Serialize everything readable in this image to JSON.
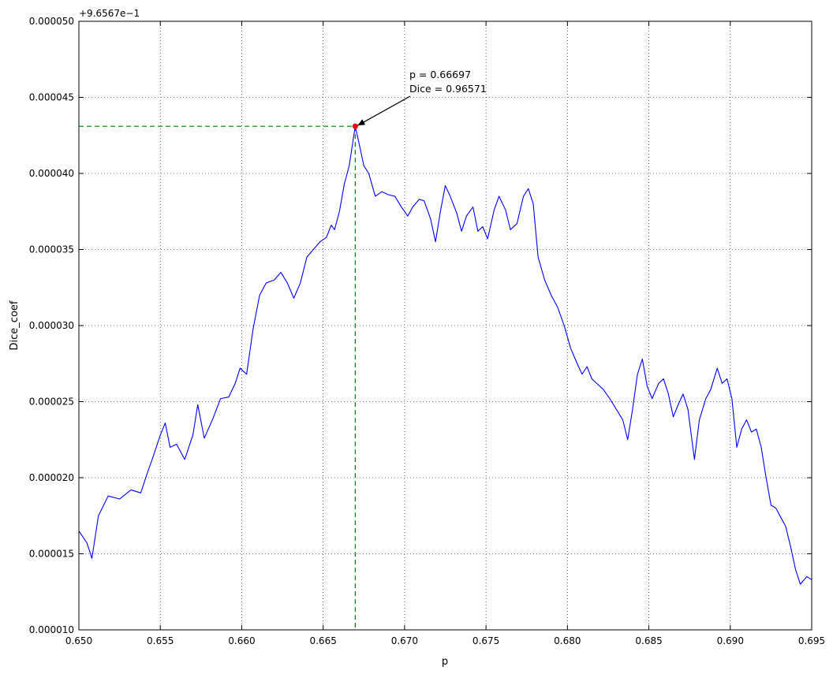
{
  "chart_data": {
    "type": "line",
    "title": "",
    "xlabel": "p",
    "ylabel": "Dice_coef",
    "offset_text": "+9.6567e−1",
    "xlim": [
      0.65,
      0.695
    ],
    "ylim": [
      1e-05,
      5e-05
    ],
    "grid": true,
    "x_ticks": [
      0.65,
      0.655,
      0.66,
      0.665,
      0.67,
      0.675,
      0.68,
      0.685,
      0.69,
      0.695
    ],
    "x_tick_labels": [
      "0.650",
      "0.655",
      "0.660",
      "0.665",
      "0.670",
      "0.675",
      "0.680",
      "0.685",
      "0.690",
      "0.695"
    ],
    "y_ticks": [
      1e-05,
      1.5e-05,
      2e-05,
      2.5e-05,
      3e-05,
      3.5e-05,
      4e-05,
      4.5e-05,
      5e-05
    ],
    "y_tick_labels": [
      "0.000010",
      "0.000015",
      "0.000020",
      "0.000025",
      "0.000030",
      "0.000035",
      "0.000040",
      "0.000045",
      "0.000050"
    ],
    "series": [
      {
        "name": "Dice_coef",
        "color": "#0000ff",
        "points": [
          [
            0.65,
            1.65e-05
          ],
          [
            0.6505,
            1.57e-05
          ],
          [
            0.6508,
            1.47e-05
          ],
          [
            0.6512,
            1.75e-05
          ],
          [
            0.6518,
            1.88e-05
          ],
          [
            0.6525,
            1.86e-05
          ],
          [
            0.6532,
            1.92e-05
          ],
          [
            0.6538,
            1.9e-05
          ],
          [
            0.6542,
            2.03e-05
          ],
          [
            0.6545,
            2.12e-05
          ],
          [
            0.655,
            2.28e-05
          ],
          [
            0.6553,
            2.36e-05
          ],
          [
            0.6556,
            2.2e-05
          ],
          [
            0.656,
            2.22e-05
          ],
          [
            0.6565,
            2.12e-05
          ],
          [
            0.657,
            2.28e-05
          ],
          [
            0.6573,
            2.48e-05
          ],
          [
            0.6577,
            2.26e-05
          ],
          [
            0.6582,
            2.38e-05
          ],
          [
            0.6587,
            2.52e-05
          ],
          [
            0.6592,
            2.53e-05
          ],
          [
            0.6596,
            2.62e-05
          ],
          [
            0.6599,
            2.72e-05
          ],
          [
            0.6603,
            2.68e-05
          ],
          [
            0.6607,
            2.98e-05
          ],
          [
            0.6611,
            3.2e-05
          ],
          [
            0.6615,
            3.28e-05
          ],
          [
            0.662,
            3.3e-05
          ],
          [
            0.6624,
            3.35e-05
          ],
          [
            0.6628,
            3.28e-05
          ],
          [
            0.6632,
            3.18e-05
          ],
          [
            0.6636,
            3.28e-05
          ],
          [
            0.664,
            3.45e-05
          ],
          [
            0.6644,
            3.5e-05
          ],
          [
            0.6648,
            3.55e-05
          ],
          [
            0.6652,
            3.58e-05
          ],
          [
            0.6655,
            3.66e-05
          ],
          [
            0.6657,
            3.63e-05
          ],
          [
            0.666,
            3.75e-05
          ],
          [
            0.6663,
            3.93e-05
          ],
          [
            0.6666,
            4.05e-05
          ],
          [
            0.66697,
            4.31e-05
          ],
          [
            0.6672,
            4.2e-05
          ],
          [
            0.6675,
            4.05e-05
          ],
          [
            0.6678,
            4e-05
          ],
          [
            0.6682,
            3.85e-05
          ],
          [
            0.6686,
            3.88e-05
          ],
          [
            0.669,
            3.86e-05
          ],
          [
            0.6694,
            3.85e-05
          ],
          [
            0.6698,
            3.78e-05
          ],
          [
            0.6702,
            3.72e-05
          ],
          [
            0.6705,
            3.78e-05
          ],
          [
            0.6709,
            3.83e-05
          ],
          [
            0.6712,
            3.82e-05
          ],
          [
            0.6716,
            3.7e-05
          ],
          [
            0.6719,
            3.55e-05
          ],
          [
            0.6722,
            3.75e-05
          ],
          [
            0.6725,
            3.92e-05
          ],
          [
            0.6728,
            3.85e-05
          ],
          [
            0.6732,
            3.74e-05
          ],
          [
            0.6735,
            3.62e-05
          ],
          [
            0.6738,
            3.72e-05
          ],
          [
            0.6742,
            3.78e-05
          ],
          [
            0.6745,
            3.62e-05
          ],
          [
            0.6748,
            3.65e-05
          ],
          [
            0.6751,
            3.57e-05
          ],
          [
            0.6755,
            3.76e-05
          ],
          [
            0.6758,
            3.85e-05
          ],
          [
            0.6762,
            3.76e-05
          ],
          [
            0.6765,
            3.63e-05
          ],
          [
            0.6769,
            3.67e-05
          ],
          [
            0.6773,
            3.85e-05
          ],
          [
            0.6776,
            3.9e-05
          ],
          [
            0.6779,
            3.8e-05
          ],
          [
            0.6782,
            3.45e-05
          ],
          [
            0.6786,
            3.3e-05
          ],
          [
            0.679,
            3.2e-05
          ],
          [
            0.6794,
            3.12e-05
          ],
          [
            0.6798,
            3e-05
          ],
          [
            0.6802,
            2.85e-05
          ],
          [
            0.6806,
            2.75e-05
          ],
          [
            0.6809,
            2.68e-05
          ],
          [
            0.6812,
            2.73e-05
          ],
          [
            0.6815,
            2.65e-05
          ],
          [
            0.6818,
            2.62e-05
          ],
          [
            0.6822,
            2.58e-05
          ],
          [
            0.6826,
            2.52e-05
          ],
          [
            0.683,
            2.45e-05
          ],
          [
            0.6834,
            2.38e-05
          ],
          [
            0.6837,
            2.25e-05
          ],
          [
            0.684,
            2.45e-05
          ],
          [
            0.6843,
            2.68e-05
          ],
          [
            0.6846,
            2.78e-05
          ],
          [
            0.6849,
            2.6e-05
          ],
          [
            0.6852,
            2.52e-05
          ],
          [
            0.6856,
            2.62e-05
          ],
          [
            0.6859,
            2.65e-05
          ],
          [
            0.6862,
            2.55e-05
          ],
          [
            0.6865,
            2.4e-05
          ],
          [
            0.6868,
            2.48e-05
          ],
          [
            0.6871,
            2.55e-05
          ],
          [
            0.6874,
            2.45e-05
          ],
          [
            0.6878,
            2.12e-05
          ],
          [
            0.6881,
            2.38e-05
          ],
          [
            0.6885,
            2.52e-05
          ],
          [
            0.6888,
            2.58e-05
          ],
          [
            0.6892,
            2.72e-05
          ],
          [
            0.6895,
            2.62e-05
          ],
          [
            0.6898,
            2.65e-05
          ],
          [
            0.6901,
            2.52e-05
          ],
          [
            0.6904,
            2.2e-05
          ],
          [
            0.6907,
            2.32e-05
          ],
          [
            0.691,
            2.38e-05
          ],
          [
            0.6913,
            2.3e-05
          ],
          [
            0.6916,
            2.32e-05
          ],
          [
            0.6919,
            2.2e-05
          ],
          [
            0.6922,
            2e-05
          ],
          [
            0.6925,
            1.82e-05
          ],
          [
            0.6928,
            1.8e-05
          ],
          [
            0.6931,
            1.74e-05
          ],
          [
            0.6934,
            1.68e-05
          ],
          [
            0.6937,
            1.55e-05
          ],
          [
            0.694,
            1.4e-05
          ],
          [
            0.6943,
            1.3e-05
          ],
          [
            0.6947,
            1.35e-05
          ],
          [
            0.695,
            1.33e-05
          ]
        ]
      }
    ],
    "max_point": {
      "x": 0.66697,
      "y": 4.31e-05,
      "color": "#ff0000"
    },
    "guide_color": "#008000",
    "annotation": {
      "line1": "p = 0.66697",
      "line2": "Dice = 0.96571"
    }
  }
}
